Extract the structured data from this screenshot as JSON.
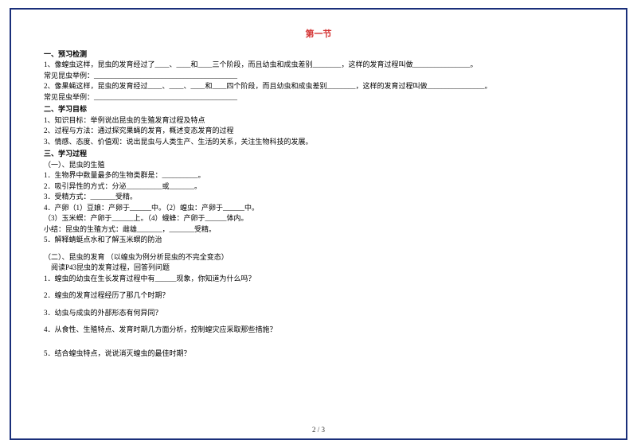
{
  "title": "第一节",
  "sections": {
    "s1": {
      "header": "一、预习检测",
      "lines": [
        "1、像蝗虫这样，昆虫的发育经过了____、____和____三个阶段，而且幼虫和成虫差别________，这样的发育过程叫做________________。",
        "常见昆虫举例：________________________________________",
        "2、像果蝇这样，昆虫的发育经过____、____、____和____四个阶段，而且幼虫和成虫差别________，这样的发育过程叫做________________。",
        "常见昆虫举例：________________________________________"
      ]
    },
    "s2": {
      "header": "二、学习目标",
      "lines": [
        "1、知识目标：举例说出昆虫的生殖发育过程及特点",
        "2、过程与方法：通过探究果蝇的发育，概述变态发育的过程",
        "3、情感、态度、价值观：说出昆虫与人类生产、生活的关系，关注生物科技的发展。"
      ]
    },
    "s3": {
      "header": "三、学习过程",
      "sub1": "（一）、昆虫的生殖",
      "lines1": [
        "1．生物界中数量最多的生物类群是：__________。",
        "2．吸引异性的方式：分泌__________或_______。",
        "3．受精方式：_______受精。",
        "4．产卵（1）豆娘：产卵于______中。（2）蝗虫：产卵于______中。",
        "（3）玉米螟：产卵于______上。（4）蛾蜂：产卵于______体内。",
        "小结：昆虫的生殖方式：雌雄_______，_______受精。",
        "5．解释蜻蜓点水和了解玉米螟的防治"
      ],
      "sub2": "（二）、昆虫的发育 （以蝗虫为例分析昆虫的不完全变态）",
      "sub2line": "　阅读P43昆虫的发育过程，回答列问题",
      "lines2": [
        "1．蝗虫的幼虫在生长发育过程中有______现象，你知道为什么吗？",
        "",
        "2．蝗虫的发育过程经历了那几个时期？",
        "",
        "3．幼虫与成虫的外部形态有何异同？",
        "",
        "4．从食性、生殖特点、发育时期几方面分析，控制蝗灾应采取那些措施？",
        "",
        "",
        "5．结合蝗虫特点，说说消灭蝗虫的最佳时期？"
      ]
    }
  },
  "footer": "2 / 3"
}
